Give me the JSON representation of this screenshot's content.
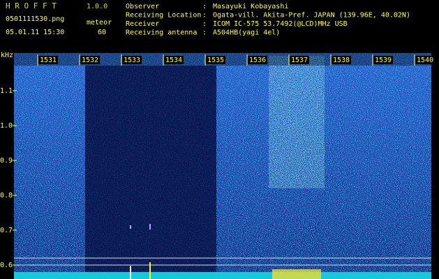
{
  "header": {
    "app": "H R O F F T",
    "version": "1.0.0",
    "file": "0501111530.png",
    "mode": "meteor",
    "datetime": "05.01.11 15:30",
    "count": "60",
    "separator": ":",
    "info": [
      {
        "label": "Observer",
        "value": "Masayuki Kobayashi"
      },
      {
        "label": "Receiving Location",
        "value": "Ogata-vill. Akita-Pref. JAPAN (139.96E, 40.02N)"
      },
      {
        "label": "Receiver",
        "value": "ICOM IC-575 53.7492(@LCD)MHz USB"
      },
      {
        "label": "Receiving antenna",
        "value": "A504HB(yagi 4el)"
      }
    ]
  },
  "time_labels": [
    "1531",
    "1532",
    "1533",
    "1534",
    "1535",
    "1536",
    "1537",
    "1538",
    "1539",
    "1540"
  ],
  "freq_unit": "kHz",
  "freq_labels": [
    "1.1",
    "1.0",
    "0.9",
    "0.8",
    "0.7",
    "0.6"
  ]
}
